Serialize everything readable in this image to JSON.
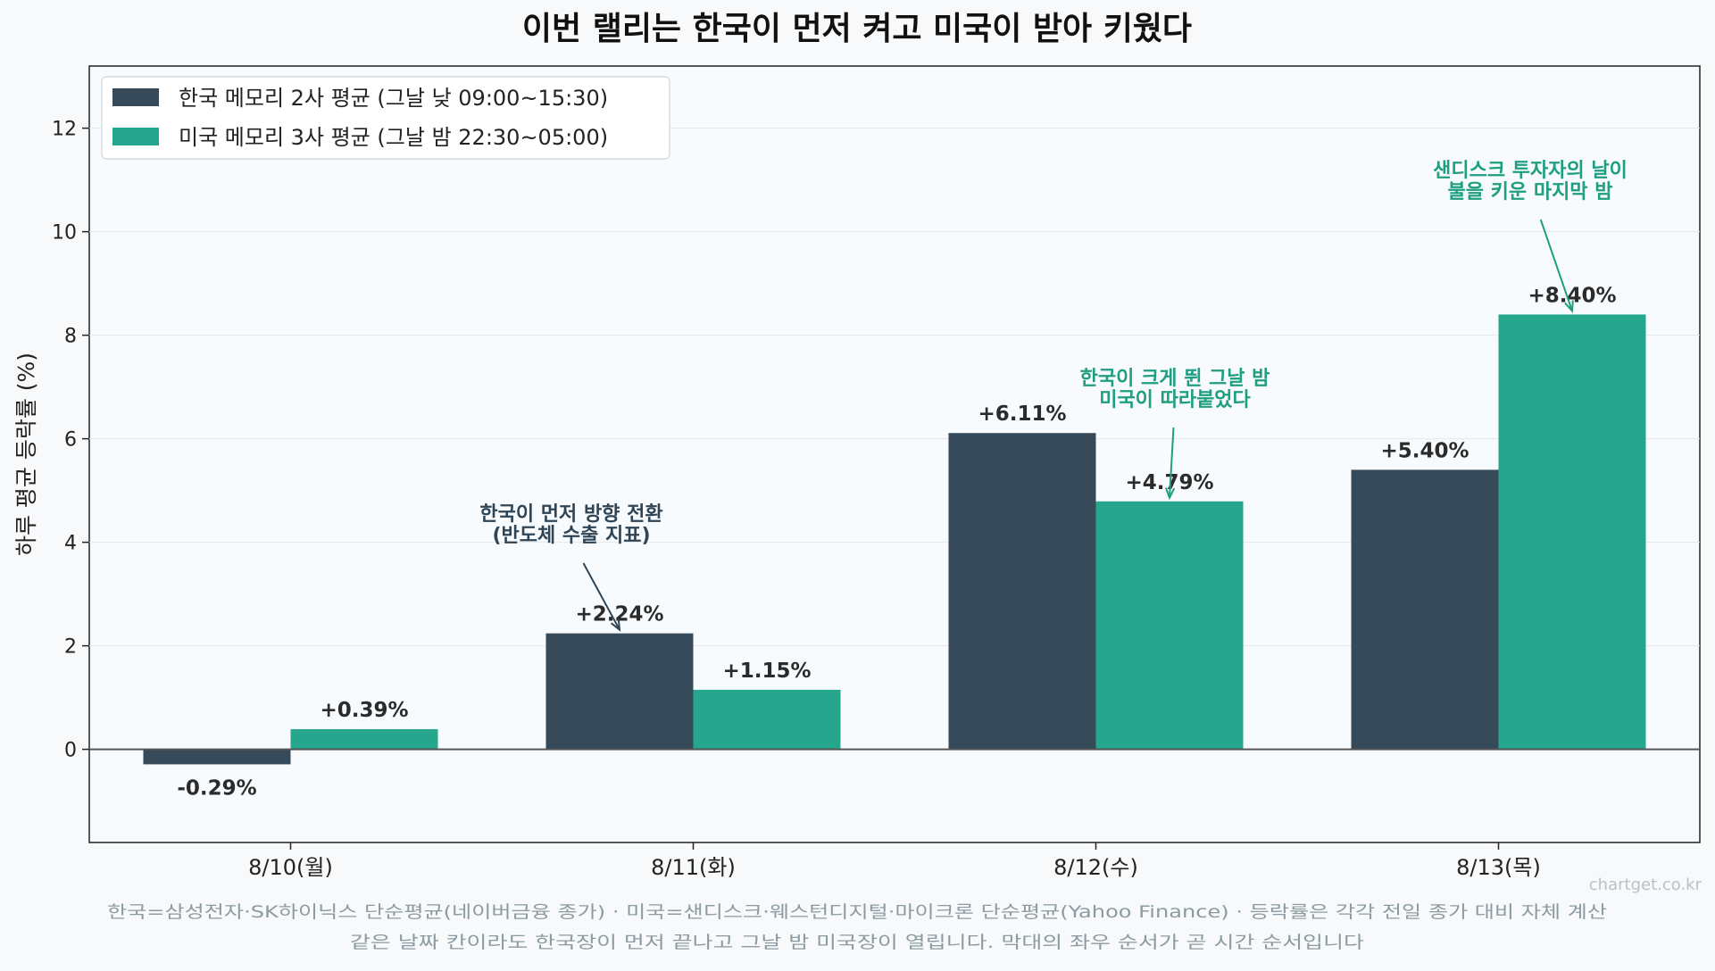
{
  "chart_data": {
    "type": "bar",
    "title": "이번 랠리는 한국이 먼저 켜고 미국이 받아 키웠다",
    "ylabel": "하루 평균 등락률 (%)",
    "xlabel": "",
    "categories": [
      "8/10(월)",
      "8/11(화)",
      "8/12(수)",
      "8/13(목)"
    ],
    "ylim": [
      -1.8,
      13.2
    ],
    "yticks": [
      0,
      2,
      4,
      6,
      8,
      10,
      12
    ],
    "grid": true,
    "legend_position": "top-left",
    "series": [
      {
        "name": "한국 메모리 2사 평균 (그날 낮 09:00~15:30)",
        "color": "#374a5a",
        "values": [
          -0.29,
          2.24,
          6.11,
          5.4
        ],
        "labels": [
          "-0.29%",
          "+2.24%",
          "+6.11%",
          "+5.40%"
        ]
      },
      {
        "name": "미국 메모리 3사 평균 (그날 밤 22:30~05:00)",
        "color": "#26a68c",
        "values": [
          0.39,
          1.15,
          4.79,
          8.4
        ],
        "labels": [
          "+0.39%",
          "+1.15%",
          "+4.79%",
          "+8.40%"
        ]
      }
    ],
    "annotations": [
      {
        "lines": [
          "한국이 먼저 방향 전환",
          "(반도체 수출 지표)"
        ],
        "color": "#2f4556",
        "category": 1,
        "series": 0
      },
      {
        "lines": [
          "한국이 크게 뛴 그날 밤",
          "미국이 따라붙었다"
        ],
        "color": "#1f9e80",
        "category": 2,
        "series": 1
      },
      {
        "lines": [
          "샌디스크 투자자의 날이",
          "불을 키운 마지막 밤"
        ],
        "color": "#1f9e80",
        "category": 3,
        "series": 1
      }
    ]
  },
  "footer": {
    "watermark": "chartget.co.kr",
    "note_line1": "한국=삼성전자·SK하이닉스 단순평균(네이버금융 종가) · 미국=샌디스크·웨스턴디지털·마이크론 단순평균(Yahoo Finance) · 등락률은 각각 전일 종가 대비 자체 계산",
    "note_line2": "같은 날짜 칸이라도 한국장이 먼저 끝나고 그날 밤 미국장이 열립니다. 막대의 좌우 순서가 곧 시간 순서입니다"
  }
}
